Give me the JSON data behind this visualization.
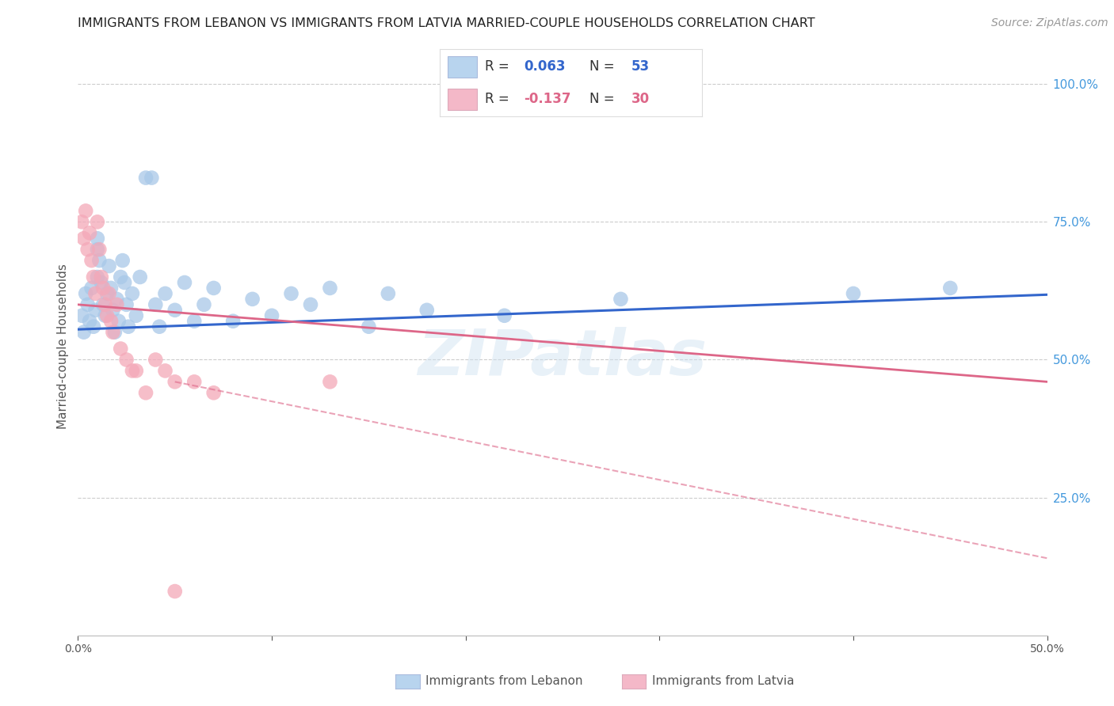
{
  "title": "IMMIGRANTS FROM LEBANON VS IMMIGRANTS FROM LATVIA MARRIED-COUPLE HOUSEHOLDS CORRELATION CHART",
  "source": "Source: ZipAtlas.com",
  "ylabel": "Married-couple Households",
  "x_lim": [
    0.0,
    0.5
  ],
  "y_lim": [
    0.0,
    1.05
  ],
  "watermark": "ZIPatlas",
  "lebanon_R": 0.063,
  "lebanon_N": 53,
  "latvia_R": -0.137,
  "latvia_N": 30,
  "lebanon_color": "#a8c8e8",
  "latvia_color": "#f4a8b8",
  "lebanon_line_color": "#3366cc",
  "latvia_line_color": "#dd6688",
  "lebanon_x": [
    0.002,
    0.003,
    0.004,
    0.005,
    0.006,
    0.007,
    0.008,
    0.009,
    0.01,
    0.01,
    0.01,
    0.011,
    0.012,
    0.013,
    0.014,
    0.015,
    0.016,
    0.017,
    0.018,
    0.019,
    0.02,
    0.021,
    0.022,
    0.023,
    0.024,
    0.025,
    0.026,
    0.028,
    0.03,
    0.032,
    0.035,
    0.038,
    0.04,
    0.042,
    0.045,
    0.05,
    0.055,
    0.06,
    0.065,
    0.07,
    0.08,
    0.09,
    0.1,
    0.11,
    0.12,
    0.13,
    0.15,
    0.16,
    0.18,
    0.22,
    0.28,
    0.4,
    0.45
  ],
  "lebanon_y": [
    0.58,
    0.55,
    0.62,
    0.6,
    0.57,
    0.63,
    0.56,
    0.59,
    0.65,
    0.7,
    0.72,
    0.68,
    0.64,
    0.6,
    0.58,
    0.62,
    0.67,
    0.63,
    0.59,
    0.55,
    0.61,
    0.57,
    0.65,
    0.68,
    0.64,
    0.6,
    0.56,
    0.62,
    0.58,
    0.65,
    0.83,
    0.83,
    0.6,
    0.56,
    0.62,
    0.59,
    0.64,
    0.57,
    0.6,
    0.63,
    0.57,
    0.61,
    0.58,
    0.62,
    0.6,
    0.63,
    0.56,
    0.62,
    0.59,
    0.58,
    0.61,
    0.62,
    0.63
  ],
  "latvia_x": [
    0.002,
    0.003,
    0.004,
    0.005,
    0.006,
    0.007,
    0.008,
    0.009,
    0.01,
    0.011,
    0.012,
    0.013,
    0.014,
    0.015,
    0.016,
    0.017,
    0.018,
    0.02,
    0.022,
    0.025,
    0.028,
    0.03,
    0.035,
    0.04,
    0.045,
    0.05,
    0.06,
    0.07,
    0.13,
    0.05
  ],
  "latvia_y": [
    0.75,
    0.72,
    0.77,
    0.7,
    0.73,
    0.68,
    0.65,
    0.62,
    0.75,
    0.7,
    0.65,
    0.63,
    0.6,
    0.58,
    0.62,
    0.57,
    0.55,
    0.6,
    0.52,
    0.5,
    0.48,
    0.48,
    0.44,
    0.5,
    0.48,
    0.46,
    0.46,
    0.44,
    0.46,
    0.08
  ],
  "lebanon_trend_x": [
    0.0,
    0.5
  ],
  "lebanon_trend_y": [
    0.555,
    0.618
  ],
  "latvia_trend_x": [
    0.0,
    0.5
  ],
  "latvia_trend_y": [
    0.6,
    0.46
  ],
  "latvia_dash_trend_x": [
    0.05,
    0.5
  ],
  "latvia_dash_trend_y": [
    0.46,
    0.14
  ],
  "grid_color": "#cccccc",
  "background_color": "#ffffff",
  "title_color": "#222222",
  "axis_color": "#4499dd",
  "legend_box_color_lebanon": "#b8d4ee",
  "legend_box_color_latvia": "#f4b8c8"
}
